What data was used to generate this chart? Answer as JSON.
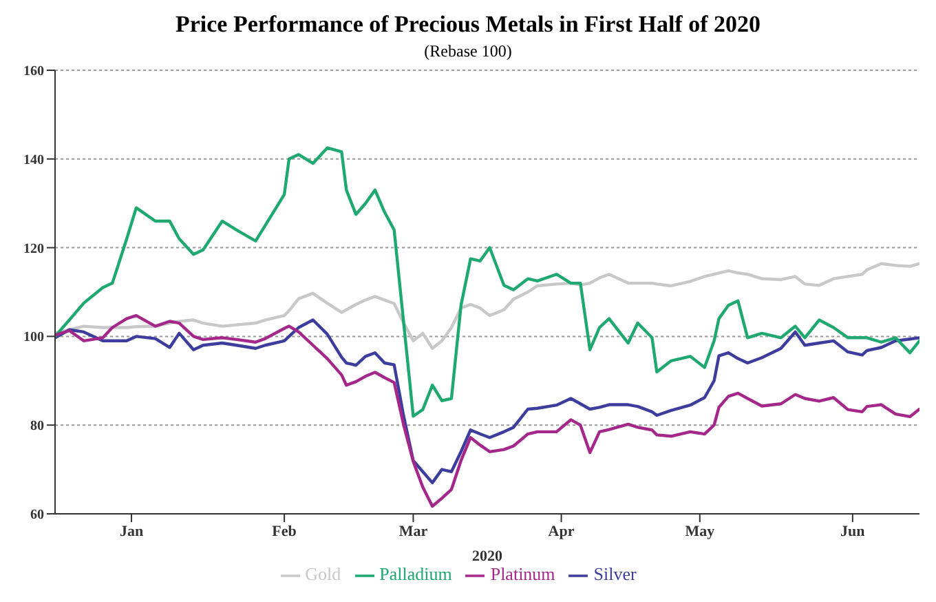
{
  "chart_data": {
    "type": "line",
    "title": "Price Performance of Precious Metals in First Half of 2020",
    "subtitle": "(Rebase 100)",
    "xlabel": "2020",
    "x": [
      "2020-01-01",
      "2020-01-04",
      "2020-01-07",
      "2020-01-11",
      "2020-01-13",
      "2020-01-16",
      "2020-01-18",
      "2020-01-22",
      "2020-01-25",
      "2020-01-27",
      "2020-01-30",
      "2020-02-01",
      "2020-02-05",
      "2020-02-08",
      "2020-02-12",
      "2020-02-14",
      "2020-02-18",
      "2020-02-19",
      "2020-02-21",
      "2020-02-24",
      "2020-02-27",
      "2020-03-01",
      "2020-03-02",
      "2020-03-04",
      "2020-03-06",
      "2020-03-08",
      "2020-03-10",
      "2020-03-12",
      "2020-03-14",
      "2020-03-16",
      "2020-03-18",
      "2020-03-20",
      "2020-03-22",
      "2020-03-24",
      "2020-03-26",
      "2020-03-28",
      "2020-03-30",
      "2020-04-01",
      "2020-04-04",
      "2020-04-06",
      "2020-04-09",
      "2020-04-11",
      "2020-04-15",
      "2020-04-18",
      "2020-04-20",
      "2020-04-22",
      "2020-04-24",
      "2020-04-26",
      "2020-04-30",
      "2020-05-02",
      "2020-05-05",
      "2020-05-06",
      "2020-05-09",
      "2020-05-13",
      "2020-05-16",
      "2020-05-18",
      "2020-05-19",
      "2020-05-21",
      "2020-05-23",
      "2020-05-25",
      "2020-05-28",
      "2020-06-01",
      "2020-06-04",
      "2020-06-06",
      "2020-06-09",
      "2020-06-12",
      "2020-06-15",
      "2020-06-18",
      "2020-06-19",
      "2020-06-22",
      "2020-06-25",
      "2020-06-28",
      "2020-06-30"
    ],
    "series": [
      {
        "name": "Gold",
        "color": "#c8c8c8",
        "values": [
          100.7,
          101.5,
          102.3,
          102,
          102,
          102,
          102.2,
          102.3,
          103,
          103.4,
          103.7,
          103,
          102.3,
          102.6,
          103,
          103.7,
          104.7,
          105.8,
          108.5,
          109.7,
          107.5,
          105.4,
          106,
          107.2,
          108.2,
          109,
          108.2,
          107.4,
          103,
          99,
          100.7,
          97.3,
          99,
          102,
          106.4,
          107.2,
          106.4,
          104.7,
          106,
          108.4,
          110,
          111.4,
          111.8,
          112,
          111.6,
          112,
          113.2,
          114,
          112,
          112,
          112,
          111.8,
          111.4,
          112.4,
          113.5,
          114,
          114.3,
          114.8,
          114.3,
          114,
          113,
          112.8,
          113.5,
          111.8,
          111.5,
          113,
          113.5,
          114,
          115,
          116.4,
          116,
          115.8,
          116.4
        ]
      },
      {
        "name": "Silver",
        "color": "#3d3d9e",
        "values": [
          99.7,
          101.5,
          101,
          99,
          99,
          99,
          100,
          99.5,
          97.5,
          100.7,
          97,
          98,
          98.5,
          98,
          97.3,
          98,
          99,
          100,
          102,
          103.7,
          100.5,
          95.3,
          94,
          93.5,
          95.5,
          96.3,
          94,
          93.6,
          82,
          72,
          69.5,
          67,
          70,
          69.5,
          74,
          78.9,
          78,
          77.2,
          78.5,
          79.5,
          83.6,
          83.8,
          84.5,
          86,
          84.8,
          83.6,
          84,
          84.6,
          84.6,
          84.2,
          83,
          82.2,
          83.3,
          84.5,
          86.2,
          90,
          95.6,
          96.3,
          95,
          94,
          95.2,
          97.3,
          101,
          98,
          98.5,
          99,
          96.5,
          95.8,
          96.8,
          97.5,
          99,
          99.4,
          99.7
        ]
      },
      {
        "name": "Palladium",
        "color": "#1fa971",
        "values": [
          100,
          103.7,
          107.5,
          111,
          112,
          122,
          129,
          126,
          126,
          122,
          118.5,
          119.5,
          126,
          124,
          121.5,
          125,
          132,
          140,
          141,
          139,
          142.5,
          141.6,
          133,
          127.5,
          130,
          133,
          128,
          124,
          103,
          82,
          83.5,
          89,
          85.5,
          86,
          107,
          117.5,
          117,
          120,
          111.5,
          110.5,
          113,
          112.5,
          114,
          112,
          112,
          97,
          102,
          104,
          98.5,
          103,
          99.7,
          92,
          94.5,
          95.5,
          93,
          99,
          104,
          107,
          108,
          99.7,
          100.7,
          99.7,
          102.3,
          99.7,
          103.7,
          102,
          99.7,
          99.7,
          99.7,
          98.7,
          99.7,
          96.3,
          99
        ]
      },
      {
        "name": "Platinum",
        "color": "#a3288a",
        "values": [
          100.3,
          101.3,
          99,
          99.7,
          102,
          104,
          104.7,
          102.3,
          103.4,
          103,
          100,
          99.3,
          99.7,
          99.3,
          98.7,
          99.5,
          101.8,
          102.3,
          101,
          98,
          95,
          91.3,
          89,
          89.8,
          91,
          91.9,
          90.7,
          89.6,
          80,
          71.8,
          66,
          61.7,
          63.5,
          65.5,
          72,
          77.2,
          75.5,
          74,
          74.5,
          75.3,
          78,
          78.5,
          78.5,
          81.2,
          80,
          73.8,
          78.5,
          79,
          80.2,
          79.5,
          78.9,
          77.8,
          77.5,
          78.5,
          78,
          80,
          84,
          86.5,
          87.2,
          86,
          84.3,
          84.8,
          86.9,
          86,
          85.4,
          86.2,
          83.5,
          83,
          84.2,
          84.6,
          82.5,
          81.9,
          83.6
        ]
      }
    ],
    "xlim": [
      "2020-01-01",
      "2020-06-30"
    ],
    "xticks": [
      {
        "value": "2020-01-17",
        "label": "Jan"
      },
      {
        "value": "2020-02-18",
        "label": "Feb"
      },
      {
        "value": "2020-03-16",
        "label": "Mar"
      },
      {
        "value": "2020-04-16",
        "label": "Apr"
      },
      {
        "value": "2020-05-15",
        "label": "May"
      },
      {
        "value": "2020-06-16",
        "label": "Jun"
      }
    ],
    "ylim": [
      60,
      160
    ],
    "yticks": [
      60,
      80,
      100,
      120,
      140,
      160
    ],
    "grid": "y",
    "legend": "bottom",
    "marker": "none",
    "line_style": "solid"
  }
}
